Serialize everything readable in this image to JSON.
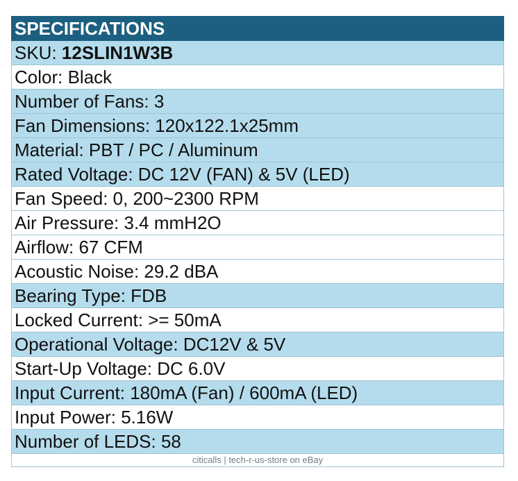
{
  "header": {
    "title": "SPECIFICATIONS"
  },
  "sku": {
    "label": "SKU: ",
    "value": "12SLIN1W3B"
  },
  "rows": [
    "Color: Black",
    "Number of Fans: 3",
    "Fan Dimensions: 120x122.1x25mm",
    "Material: PBT / PC / Aluminum",
    "Rated Voltage: DC 12V (FAN) & 5V (LED)",
    "Fan Speed: 0, 200~2300 RPM",
    "Air Pressure: 3.4 mmH2O",
    "Airflow: 67 CFM",
    "Acoustic Noise: 29.2 dBA",
    "Bearing Type: FDB",
    "Locked Current: >= 50mA",
    "Operational Voltage: DC12V & 5V",
    "Start-Up Voltage: DC 6.0V",
    "Input Current: 180mA (Fan) / 600mA (LED)",
    "Input Power: 5.16W",
    "Number of LEDS: 58"
  ],
  "footer": {
    "text": "citicalls | tech-r-us-store on eBay"
  }
}
